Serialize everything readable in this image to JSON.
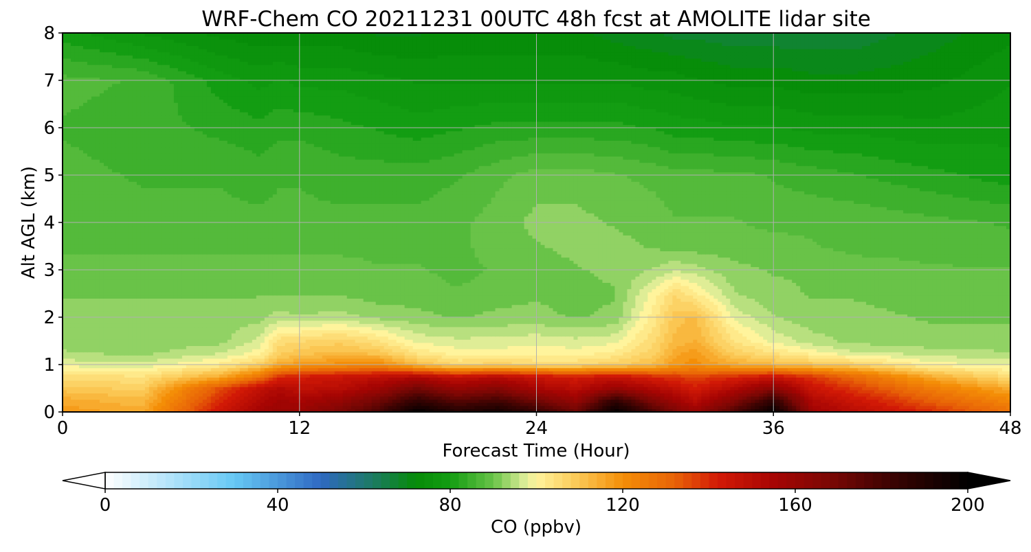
{
  "chart_data": {
    "type": "heatmap",
    "subtype": "filled-contour time-height cross section",
    "title": "WRF-Chem CO  20211231 00UTC 48h fcst at AMOLITE lidar site",
    "xlabel": "Forecast Time (Hour)",
    "ylabel": "Alt AGL (km)",
    "xlim": [
      0,
      48
    ],
    "ylim": [
      0,
      8
    ],
    "xticks": [
      0,
      12,
      24,
      36,
      48
    ],
    "yticks": [
      0,
      1,
      2,
      3,
      4,
      5,
      6,
      7,
      8
    ],
    "grid": true,
    "x": [
      0,
      4,
      8,
      10,
      11,
      12,
      14,
      16,
      18,
      20,
      22,
      24,
      26,
      28,
      30,
      31,
      32,
      34,
      36,
      38,
      40,
      44,
      48
    ],
    "y": [
      0,
      0.25,
      0.5,
      0.75,
      1,
      1.25,
      1.5,
      2,
      2.5,
      3,
      3.5,
      4,
      5,
      6,
      7,
      8
    ],
    "colorbar": {
      "label": "CO  (ppbv)",
      "range": [
        0,
        200
      ],
      "ticks": [
        0,
        40,
        80,
        120,
        160,
        200
      ],
      "extend": "both",
      "orientation": "horizontal",
      "colormap_stops": [
        {
          "value": 0,
          "color": "#ffffff"
        },
        {
          "value": 30,
          "color": "#66c8f5"
        },
        {
          "value": 50,
          "color": "#2f69c2"
        },
        {
          "value": 62,
          "color": "#1c7a63"
        },
        {
          "value": 72,
          "color": "#068c08"
        },
        {
          "value": 80,
          "color": "#139d12"
        },
        {
          "value": 90,
          "color": "#69c348"
        },
        {
          "value": 97,
          "color": "#d8ec95"
        },
        {
          "value": 100,
          "color": "#fff49c"
        },
        {
          "value": 110,
          "color": "#fbc652"
        },
        {
          "value": 120,
          "color": "#f48e07"
        },
        {
          "value": 132,
          "color": "#e86307"
        },
        {
          "value": 142,
          "color": "#d31a06"
        },
        {
          "value": 155,
          "color": "#a70503"
        },
        {
          "value": 168,
          "color": "#7b0704"
        },
        {
          "value": 182,
          "color": "#3c0302"
        },
        {
          "value": 200,
          "color": "#000000"
        }
      ]
    },
    "values": [
      [
        118,
        115,
        145,
        157,
        160,
        160,
        168,
        180,
        200,
        190,
        195,
        185,
        172,
        200,
        178,
        168,
        160,
        178,
        200,
        158,
        150,
        140,
        128
      ],
      [
        115,
        112,
        140,
        152,
        157,
        155,
        160,
        170,
        185,
        175,
        180,
        170,
        160,
        185,
        165,
        158,
        150,
        165,
        185,
        152,
        145,
        132,
        122
      ],
      [
        110,
        108,
        135,
        148,
        152,
        148,
        150,
        158,
        170,
        160,
        165,
        155,
        150,
        160,
        152,
        148,
        142,
        152,
        165,
        145,
        138,
        125,
        115
      ],
      [
        105,
        104,
        115,
        128,
        140,
        142,
        145,
        148,
        152,
        146,
        150,
        145,
        142,
        146,
        140,
        138,
        136,
        140,
        145,
        138,
        130,
        115,
        105
      ],
      [
        98,
        97,
        102,
        108,
        115,
        118,
        120,
        122,
        112,
        106,
        108,
        106,
        106,
        108,
        112,
        118,
        120,
        115,
        112,
        110,
        108,
        100,
        98
      ],
      [
        94,
        93,
        96,
        100,
        108,
        110,
        112,
        110,
        103,
        100,
        100,
        100,
        100,
        102,
        108,
        115,
        118,
        108,
        104,
        100,
        97,
        95,
        94
      ],
      [
        93,
        92,
        93,
        97,
        105,
        106,
        108,
        104,
        98,
        97,
        97,
        98,
        97,
        98,
        106,
        112,
        114,
        104,
        98,
        95,
        93,
        92,
        92
      ],
      [
        92,
        92,
        92,
        93,
        95,
        94,
        95,
        93,
        92,
        91,
        92,
        92,
        91,
        92,
        103,
        110,
        112,
        98,
        94,
        92,
        92,
        91,
        91
      ],
      [
        91,
        91,
        91,
        91,
        91,
        91,
        91,
        90,
        90,
        89,
        90,
        91,
        90,
        91,
        100,
        106,
        102,
        94,
        92,
        91,
        91,
        90,
        90
      ],
      [
        90,
        90,
        90,
        90,
        90,
        90,
        90,
        89,
        89,
        88,
        89,
        90,
        91,
        92,
        94,
        96,
        95,
        92,
        91,
        91,
        90,
        89,
        89
      ],
      [
        88,
        88,
        88,
        88,
        88,
        88,
        88,
        88,
        88,
        88,
        90,
        91,
        92,
        92,
        91,
        90,
        90,
        90,
        90,
        89,
        88,
        88,
        87
      ],
      [
        88,
        87,
        87,
        87,
        87,
        87,
        87,
        87,
        87,
        88,
        90,
        92,
        92,
        91,
        90,
        89,
        89,
        89,
        88,
        88,
        88,
        87,
        86
      ],
      [
        87,
        86,
        86,
        85,
        86,
        86,
        85,
        85,
        85,
        86,
        88,
        90,
        90,
        89,
        88,
        87,
        87,
        87,
        86,
        85,
        84,
        82,
        80
      ],
      [
        86,
        85,
        83,
        82,
        83,
        83,
        82,
        81,
        80,
        81,
        82,
        82,
        82,
        82,
        81,
        80,
        80,
        79,
        79,
        78,
        78,
        77,
        78
      ],
      [
        87,
        86,
        80,
        78,
        79,
        78,
        78,
        77,
        76,
        76,
        76,
        76,
        76,
        76,
        75,
        75,
        74,
        73,
        73,
        72,
        72,
        73,
        76
      ],
      [
        80,
        76,
        73,
        72,
        72,
        72,
        72,
        71,
        71,
        72,
        72,
        72,
        72,
        70,
        69,
        68,
        68,
        67,
        67,
        67,
        67,
        70,
        73
      ]
    ]
  }
}
